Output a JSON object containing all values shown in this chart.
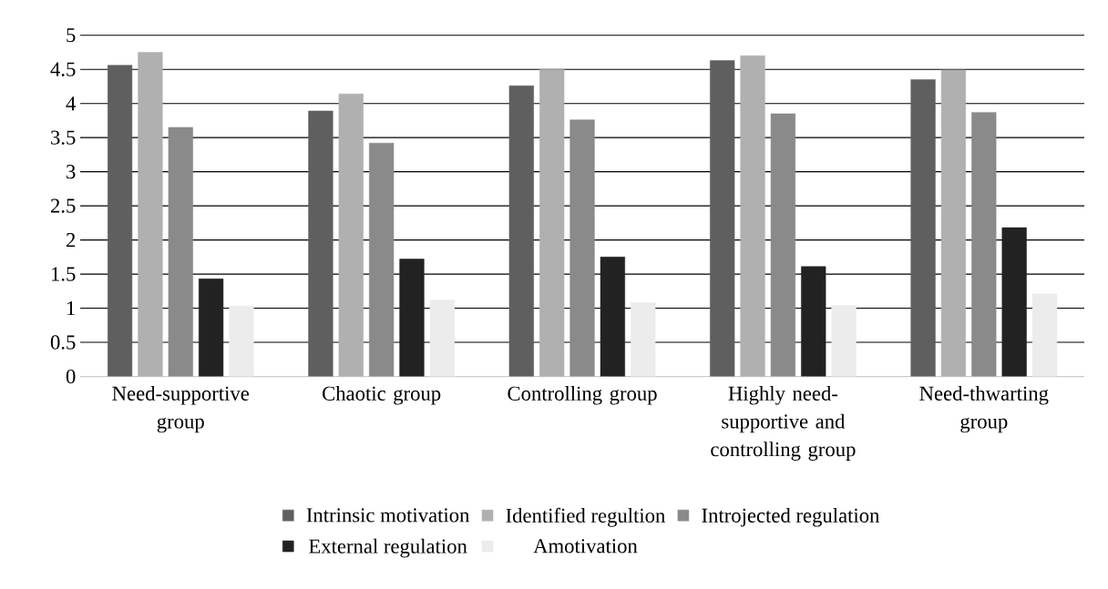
{
  "chart_data": {
    "type": "bar",
    "categories": [
      "Need-supportive group",
      "Chaotic group",
      "Controlling group",
      "Highly need-supportive and controlling group",
      "Need-thwarting group"
    ],
    "series": [
      {
        "name": "Intrinsic motivation",
        "color": "#5f5f5f",
        "values": [
          4.56,
          3.89,
          4.26,
          4.63,
          4.35
        ]
      },
      {
        "name": "Identified regultion",
        "color": "#b0b0b0",
        "values": [
          4.75,
          4.14,
          4.5,
          4.7,
          4.49
        ]
      },
      {
        "name": "Introjected regulation",
        "color": "#8a8a8a",
        "values": [
          3.65,
          3.42,
          3.76,
          3.85,
          3.87
        ]
      },
      {
        "name": "External regulation",
        "color": "#222222",
        "values": [
          1.43,
          1.72,
          1.75,
          1.61,
          2.18
        ]
      },
      {
        "name": "Amotivation",
        "color": "#ececec",
        "values": [
          1.03,
          1.12,
          1.08,
          1.04,
          1.21
        ]
      }
    ],
    "ylim": [
      0,
      5
    ],
    "yticks": [
      0,
      0.5,
      1,
      1.5,
      2,
      2.5,
      3,
      3.5,
      4,
      4.5,
      5
    ],
    "grid": "y",
    "legend": "bottom"
  }
}
